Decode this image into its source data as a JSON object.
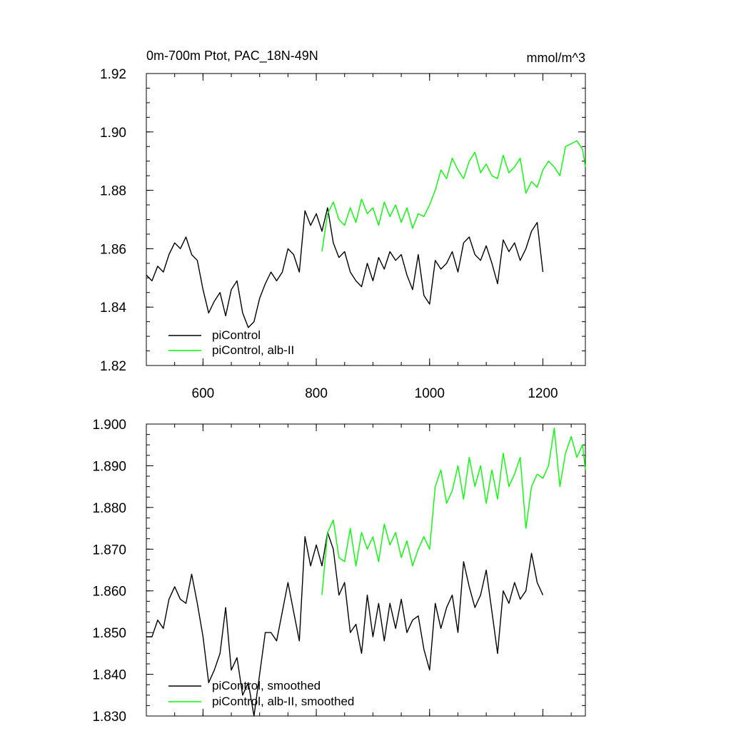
{
  "chart_data": [
    {
      "type": "line",
      "title": "0m-700m Ptot, PAC_18N-49N",
      "units": "mmol/m^3",
      "xlim": [
        500,
        1275
      ],
      "ylim": [
        1.82,
        1.92
      ],
      "xticks": [
        600,
        800,
        1000,
        1200
      ],
      "yticks": [
        1.82,
        1.84,
        1.86,
        1.88,
        1.9,
        1.92
      ],
      "ytick_labels": [
        "1.82",
        "1.84",
        "1.86",
        "1.88",
        "1.90",
        "1.92"
      ],
      "xtick_labels": [
        "600",
        "800",
        "1000",
        "1200"
      ],
      "legend": [
        {
          "name": "piControl",
          "color": "#000000"
        },
        {
          "name": "piControl, alb-II",
          "color": "#00ff00"
        }
      ],
      "series": [
        {
          "name": "piControl",
          "color": "#000000",
          "x": [
            500,
            510,
            520,
            530,
            540,
            550,
            560,
            570,
            580,
            590,
            600,
            610,
            620,
            630,
            640,
            650,
            660,
            670,
            680,
            690,
            700,
            710,
            720,
            730,
            740,
            750,
            760,
            770,
            780,
            790,
            800,
            810,
            820,
            830,
            840,
            850,
            860,
            870,
            880,
            890,
            900,
            910,
            920,
            930,
            940,
            950,
            960,
            970,
            980,
            990,
            1000,
            1010,
            1020,
            1030,
            1040,
            1050,
            1060,
            1070,
            1080,
            1090,
            1100,
            1110,
            1120,
            1130,
            1140,
            1150,
            1160,
            1170,
            1180,
            1190,
            1200
          ],
          "values": [
            1.851,
            1.849,
            1.854,
            1.852,
            1.858,
            1.862,
            1.86,
            1.864,
            1.858,
            1.856,
            1.846,
            1.838,
            1.842,
            1.845,
            1.837,
            1.846,
            1.849,
            1.838,
            1.833,
            1.835,
            1.843,
            1.848,
            1.852,
            1.849,
            1.852,
            1.86,
            1.858,
            1.852,
            1.873,
            1.868,
            1.872,
            1.866,
            1.874,
            1.862,
            1.857,
            1.859,
            1.852,
            1.849,
            1.847,
            1.855,
            1.849,
            1.857,
            1.853,
            1.859,
            1.856,
            1.858,
            1.851,
            1.846,
            1.858,
            1.844,
            1.841,
            1.856,
            1.853,
            1.855,
            1.859,
            1.852,
            1.862,
            1.864,
            1.858,
            1.856,
            1.861,
            1.855,
            1.848,
            1.863,
            1.859,
            1.862,
            1.856,
            1.86,
            1.866,
            1.869,
            1.852
          ]
        },
        {
          "name": "piControl, alb-II",
          "color": "#00ff00",
          "x": [
            810,
            820,
            830,
            840,
            850,
            860,
            870,
            880,
            890,
            900,
            910,
            920,
            930,
            940,
            950,
            960,
            970,
            980,
            990,
            1000,
            1010,
            1020,
            1030,
            1040,
            1050,
            1060,
            1070,
            1080,
            1090,
            1100,
            1110,
            1120,
            1130,
            1140,
            1150,
            1160,
            1170,
            1180,
            1190,
            1200,
            1210,
            1220,
            1230,
            1240,
            1250,
            1260,
            1270,
            1275
          ],
          "values": [
            1.859,
            1.872,
            1.876,
            1.87,
            1.868,
            1.874,
            1.869,
            1.877,
            1.872,
            1.874,
            1.868,
            1.876,
            1.871,
            1.875,
            1.869,
            1.874,
            1.867,
            1.872,
            1.871,
            1.875,
            1.88,
            1.887,
            1.884,
            1.891,
            1.887,
            1.884,
            1.89,
            1.893,
            1.886,
            1.889,
            1.885,
            1.884,
            1.892,
            1.886,
            1.888,
            1.891,
            1.879,
            1.883,
            1.881,
            1.887,
            1.89,
            1.888,
            1.885,
            1.895,
            1.896,
            1.897,
            1.894,
            1.888
          ]
        }
      ]
    },
    {
      "type": "line",
      "title": "",
      "xlim": [
        500,
        1275
      ],
      "ylim": [
        1.83,
        1.9
      ],
      "xticks": [
        600,
        800,
        1000,
        1200
      ],
      "yticks": [
        1.83,
        1.84,
        1.85,
        1.86,
        1.87,
        1.88,
        1.89,
        1.9
      ],
      "ytick_labels": [
        "1.830",
        "1.840",
        "1.850",
        "1.860",
        "1.870",
        "1.880",
        "1.890",
        "1.900"
      ],
      "legend": [
        {
          "name": "piControl, smoothed",
          "color": "#000000"
        },
        {
          "name": "piControl, alb-II, smoothed",
          "color": "#00ff00"
        }
      ],
      "series": [
        {
          "name": "piControl, smoothed",
          "color": "#000000",
          "x": [
            500,
            510,
            520,
            530,
            540,
            550,
            560,
            570,
            580,
            590,
            600,
            610,
            620,
            630,
            640,
            650,
            660,
            670,
            680,
            690,
            700,
            710,
            720,
            730,
            740,
            750,
            760,
            770,
            780,
            790,
            800,
            810,
            820,
            830,
            840,
            850,
            860,
            870,
            880,
            890,
            900,
            910,
            920,
            930,
            940,
            950,
            960,
            970,
            980,
            990,
            1000,
            1010,
            1020,
            1030,
            1040,
            1050,
            1060,
            1070,
            1080,
            1090,
            1100,
            1110,
            1120,
            1130,
            1140,
            1150,
            1160,
            1170,
            1180,
            1190,
            1200
          ],
          "values": [
            1.849,
            1.849,
            1.853,
            1.851,
            1.858,
            1.861,
            1.858,
            1.857,
            1.864,
            1.857,
            1.849,
            1.838,
            1.841,
            1.845,
            1.856,
            1.841,
            1.844,
            1.835,
            1.838,
            1.83,
            1.84,
            1.85,
            1.85,
            1.848,
            1.855,
            1.862,
            1.855,
            1.848,
            1.873,
            1.866,
            1.871,
            1.866,
            1.874,
            1.87,
            1.859,
            1.862,
            1.85,
            1.852,
            1.845,
            1.859,
            1.849,
            1.857,
            1.848,
            1.857,
            1.851,
            1.858,
            1.85,
            1.853,
            1.854,
            1.846,
            1.841,
            1.857,
            1.851,
            1.856,
            1.859,
            1.85,
            1.867,
            1.861,
            1.856,
            1.859,
            1.865,
            1.855,
            1.845,
            1.86,
            1.857,
            1.862,
            1.858,
            1.86,
            1.869,
            1.862,
            1.859
          ]
        },
        {
          "name": "piControl, alb-II, smoothed",
          "color": "#00ff00",
          "x": [
            810,
            820,
            830,
            840,
            850,
            860,
            870,
            880,
            890,
            900,
            910,
            920,
            930,
            940,
            950,
            960,
            970,
            980,
            990,
            1000,
            1010,
            1020,
            1030,
            1040,
            1050,
            1060,
            1070,
            1080,
            1090,
            1100,
            1110,
            1120,
            1130,
            1140,
            1150,
            1160,
            1170,
            1180,
            1190,
            1200,
            1210,
            1220,
            1230,
            1240,
            1250,
            1260,
            1270,
            1275
          ],
          "values": [
            1.859,
            1.874,
            1.877,
            1.868,
            1.867,
            1.875,
            1.866,
            1.874,
            1.87,
            1.873,
            1.867,
            1.876,
            1.871,
            1.874,
            1.868,
            1.872,
            1.866,
            1.87,
            1.873,
            1.87,
            1.885,
            1.889,
            1.881,
            1.884,
            1.89,
            1.882,
            1.892,
            1.885,
            1.89,
            1.881,
            1.889,
            1.882,
            1.893,
            1.885,
            1.888,
            1.892,
            1.875,
            1.885,
            1.888,
            1.887,
            1.89,
            1.899,
            1.885,
            1.893,
            1.897,
            1.892,
            1.895,
            1.889
          ]
        }
      ]
    }
  ]
}
